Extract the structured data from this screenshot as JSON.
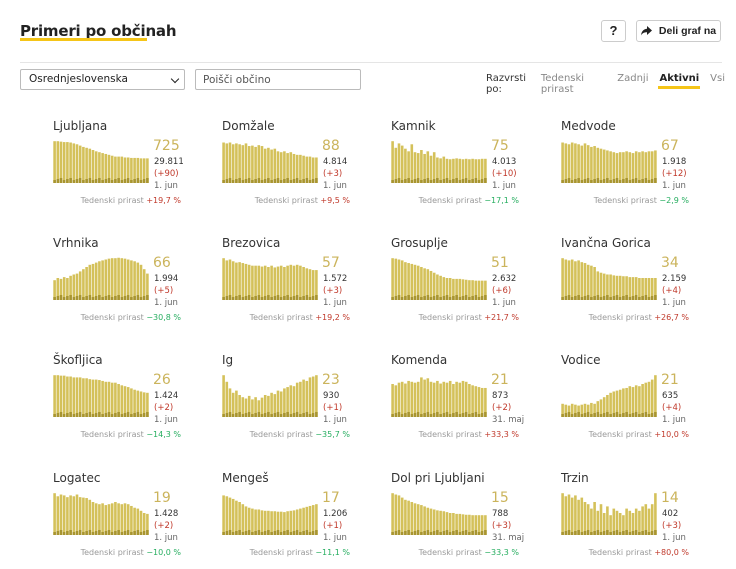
{
  "header": {
    "title": "Primeri po občinah",
    "help_label": "?",
    "share_label": "Deli graf na"
  },
  "filters": {
    "region_value": "Osrednjeslovenska",
    "search_placeholder": "Poišči občino"
  },
  "sort": {
    "label": "Razvrsti po:",
    "options": [
      "Tedenski prirast",
      "Zadnji",
      "Aktivni",
      "Vsi"
    ],
    "active": "Aktivni"
  },
  "colors": {
    "bar": "#d4c15a",
    "bar_dark": "#a89530",
    "accent": "#f5c518",
    "positive": "#c0392b",
    "negative": "#27ae60"
  },
  "growth_label": "Tedenski prirast",
  "municipalities": [
    {
      "name": "Ljubljana",
      "active": "725",
      "total": "29.811",
      "delta": "(+90)",
      "date": "1. jun",
      "growth": "+19,7 %",
      "growth_sign": "pos",
      "bars": [
        0.95,
        0.95,
        0.94,
        0.93,
        0.93,
        0.92,
        0.9,
        0.88,
        0.85,
        0.82,
        0.8,
        0.78,
        0.75,
        0.72,
        0.7,
        0.68,
        0.66,
        0.64,
        0.62,
        0.6,
        0.6,
        0.6,
        0.58,
        0.58,
        0.57,
        0.57,
        0.57,
        0.56,
        0.56,
        0.56
      ]
    },
    {
      "name": "Domžale",
      "active": "88",
      "total": "4.814",
      "delta": "(+3)",
      "date": "1. jun",
      "growth": "+9,5 %",
      "growth_sign": "pos",
      "bars": [
        0.92,
        0.9,
        0.92,
        0.88,
        0.9,
        0.88,
        0.86,
        0.9,
        0.84,
        0.85,
        0.82,
        0.86,
        0.84,
        0.78,
        0.8,
        0.76,
        0.78,
        0.72,
        0.7,
        0.72,
        0.68,
        0.7,
        0.66,
        0.64,
        0.64,
        0.62,
        0.6,
        0.6,
        0.58,
        0.58
      ]
    },
    {
      "name": "Kamnik",
      "active": "75",
      "total": "4.013",
      "delta": "(+10)",
      "date": "1. jun",
      "growth": "−17,1 %",
      "growth_sign": "neg",
      "bars": [
        0.95,
        0.8,
        0.9,
        0.85,
        0.78,
        0.72,
        0.88,
        0.7,
        0.68,
        0.75,
        0.66,
        0.72,
        0.62,
        0.7,
        0.58,
        0.56,
        0.6,
        0.55,
        0.54,
        0.55,
        0.56,
        0.55,
        0.54,
        0.55,
        0.54,
        0.55,
        0.54,
        0.54,
        0.55,
        0.55
      ]
    },
    {
      "name": "Medvode",
      "active": "67",
      "total": "1.918",
      "delta": "(+12)",
      "date": "1. jun",
      "growth": "−2,9 %",
      "growth_sign": "neg",
      "bars": [
        0.92,
        0.9,
        0.88,
        0.92,
        0.9,
        0.88,
        0.85,
        0.9,
        0.86,
        0.82,
        0.84,
        0.8,
        0.78,
        0.76,
        0.74,
        0.72,
        0.7,
        0.68,
        0.7,
        0.7,
        0.72,
        0.7,
        0.68,
        0.72,
        0.7,
        0.72,
        0.7,
        0.72,
        0.72,
        0.74
      ]
    },
    {
      "name": "Vrhnika",
      "active": "66",
      "total": "1.994",
      "delta": "(+5)",
      "date": "1. jun",
      "growth": "−30,8 %",
      "growth_sign": "neg",
      "bars": [
        0.45,
        0.5,
        0.48,
        0.52,
        0.5,
        0.55,
        0.58,
        0.6,
        0.65,
        0.7,
        0.75,
        0.8,
        0.82,
        0.85,
        0.88,
        0.9,
        0.92,
        0.94,
        0.95,
        0.95,
        0.96,
        0.95,
        0.94,
        0.92,
        0.9,
        0.88,
        0.85,
        0.8,
        0.7,
        0.6
      ]
    },
    {
      "name": "Brezovica",
      "active": "57",
      "total": "1.572",
      "delta": "(+3)",
      "date": "1. jun",
      "growth": "+19,2 %",
      "growth_sign": "pos",
      "bars": [
        0.95,
        0.9,
        0.92,
        0.88,
        0.85,
        0.86,
        0.84,
        0.82,
        0.8,
        0.78,
        0.78,
        0.78,
        0.76,
        0.78,
        0.75,
        0.78,
        0.74,
        0.76,
        0.78,
        0.75,
        0.78,
        0.8,
        0.78,
        0.8,
        0.78,
        0.75,
        0.72,
        0.7,
        0.68,
        0.68
      ]
    },
    {
      "name": "Grosuplje",
      "active": "51",
      "total": "2.632",
      "delta": "(+6)",
      "date": "1. jun",
      "growth": "+21,7 %",
      "growth_sign": "pos",
      "bars": [
        0.95,
        0.94,
        0.92,
        0.9,
        0.86,
        0.84,
        0.82,
        0.8,
        0.78,
        0.75,
        0.72,
        0.7,
        0.66,
        0.62,
        0.58,
        0.55,
        0.52,
        0.5,
        0.5,
        0.48,
        0.48,
        0.48,
        0.47,
        0.46,
        0.45,
        0.45,
        0.44,
        0.44,
        0.44,
        0.44
      ]
    },
    {
      "name": "Ivančna Gorica",
      "active": "34",
      "total": "2.159",
      "delta": "(+4)",
      "date": "1. jun",
      "growth": "+26,7 %",
      "growth_sign": "pos",
      "bars": [
        0.95,
        0.92,
        0.9,
        0.92,
        0.88,
        0.9,
        0.86,
        0.84,
        0.8,
        0.78,
        0.75,
        0.65,
        0.62,
        0.6,
        0.58,
        0.58,
        0.56,
        0.55,
        0.55,
        0.54,
        0.54,
        0.52,
        0.52,
        0.52,
        0.5,
        0.5,
        0.5,
        0.5,
        0.5,
        0.5
      ]
    },
    {
      "name": "Škofljica",
      "active": "26",
      "total": "1.424",
      "delta": "(+2)",
      "date": "1. jun",
      "growth": "−14,3 %",
      "growth_sign": "neg",
      "bars": [
        0.95,
        0.95,
        0.94,
        0.94,
        0.92,
        0.92,
        0.9,
        0.9,
        0.9,
        0.88,
        0.88,
        0.86,
        0.85,
        0.85,
        0.84,
        0.82,
        0.8,
        0.8,
        0.78,
        0.78,
        0.75,
        0.72,
        0.7,
        0.68,
        0.65,
        0.62,
        0.6,
        0.58,
        0.56,
        0.55
      ]
    },
    {
      "name": "Ig",
      "active": "23",
      "total": "930",
      "delta": "(+1)",
      "date": "1. jun",
      "growth": "−35,7 %",
      "growth_sign": "neg",
      "bars": [
        0.95,
        0.8,
        0.65,
        0.55,
        0.6,
        0.5,
        0.45,
        0.42,
        0.48,
        0.4,
        0.45,
        0.38,
        0.44,
        0.5,
        0.48,
        0.55,
        0.52,
        0.6,
        0.58,
        0.65,
        0.68,
        0.72,
        0.7,
        0.78,
        0.8,
        0.85,
        0.82,
        0.9,
        0.92,
        0.95
      ]
    },
    {
      "name": "Komenda",
      "active": "21",
      "total": "873",
      "delta": "(+2)",
      "date": "31. maj",
      "growth": "+33,3 %",
      "growth_sign": "pos",
      "bars": [
        0.75,
        0.72,
        0.78,
        0.8,
        0.76,
        0.82,
        0.8,
        0.78,
        0.8,
        0.9,
        0.85,
        0.88,
        0.8,
        0.78,
        0.82,
        0.76,
        0.8,
        0.78,
        0.82,
        0.75,
        0.8,
        0.78,
        0.82,
        0.8,
        0.75,
        0.72,
        0.7,
        0.68,
        0.66,
        0.66
      ]
    },
    {
      "name": "Vodice",
      "active": "21",
      "total": "635",
      "delta": "(+4)",
      "date": "1. jun",
      "growth": "+10,0 %",
      "growth_sign": "pos",
      "bars": [
        0.3,
        0.28,
        0.26,
        0.3,
        0.28,
        0.26,
        0.28,
        0.3,
        0.28,
        0.32,
        0.3,
        0.36,
        0.4,
        0.45,
        0.5,
        0.55,
        0.58,
        0.6,
        0.62,
        0.65,
        0.66,
        0.7,
        0.68,
        0.72,
        0.7,
        0.75,
        0.78,
        0.8,
        0.85,
        0.95
      ]
    },
    {
      "name": "Logatec",
      "active": "19",
      "total": "1.428",
      "delta": "(+2)",
      "date": "1. jun",
      "growth": "−10,0 %",
      "growth_sign": "neg",
      "bars": [
        0.95,
        0.88,
        0.92,
        0.9,
        0.86,
        0.9,
        0.88,
        0.92,
        0.86,
        0.85,
        0.84,
        0.8,
        0.75,
        0.72,
        0.7,
        0.72,
        0.68,
        0.7,
        0.72,
        0.75,
        0.72,
        0.7,
        0.72,
        0.7,
        0.66,
        0.62,
        0.6,
        0.55,
        0.5,
        0.48
      ]
    },
    {
      "name": "Mengeš",
      "active": "17",
      "total": "1.206",
      "delta": "(+1)",
      "date": "1. jun",
      "growth": "−11,1 %",
      "growth_sign": "neg",
      "bars": [
        0.9,
        0.88,
        0.85,
        0.82,
        0.78,
        0.75,
        0.7,
        0.65,
        0.62,
        0.6,
        0.58,
        0.58,
        0.56,
        0.55,
        0.55,
        0.54,
        0.54,
        0.53,
        0.53,
        0.52,
        0.54,
        0.55,
        0.56,
        0.58,
        0.6,
        0.62,
        0.64,
        0.66,
        0.68,
        0.7
      ]
    },
    {
      "name": "Dol pri Ljubljani",
      "active": "15",
      "total": "788",
      "delta": "(+3)",
      "date": "31. maj",
      "growth": "−33,3 %",
      "growth_sign": "neg",
      "bars": [
        0.95,
        0.92,
        0.9,
        0.85,
        0.8,
        0.78,
        0.75,
        0.72,
        0.7,
        0.68,
        0.65,
        0.62,
        0.6,
        0.58,
        0.56,
        0.55,
        0.54,
        0.52,
        0.5,
        0.5,
        0.48,
        0.48,
        0.47,
        0.46,
        0.46,
        0.45,
        0.45,
        0.45,
        0.45,
        0.45
      ]
    },
    {
      "name": "Trzin",
      "active": "14",
      "total": "402",
      "delta": "(+3)",
      "date": "1. jun",
      "growth": "+80,0 %",
      "growth_sign": "pos",
      "bars": [
        0.95,
        0.88,
        0.92,
        0.85,
        0.9,
        0.8,
        0.85,
        0.75,
        0.7,
        0.6,
        0.75,
        0.55,
        0.7,
        0.5,
        0.65,
        0.45,
        0.6,
        0.55,
        0.5,
        0.45,
        0.6,
        0.55,
        0.5,
        0.6,
        0.55,
        0.65,
        0.7,
        0.6,
        0.7,
        0.95
      ]
    }
  ]
}
